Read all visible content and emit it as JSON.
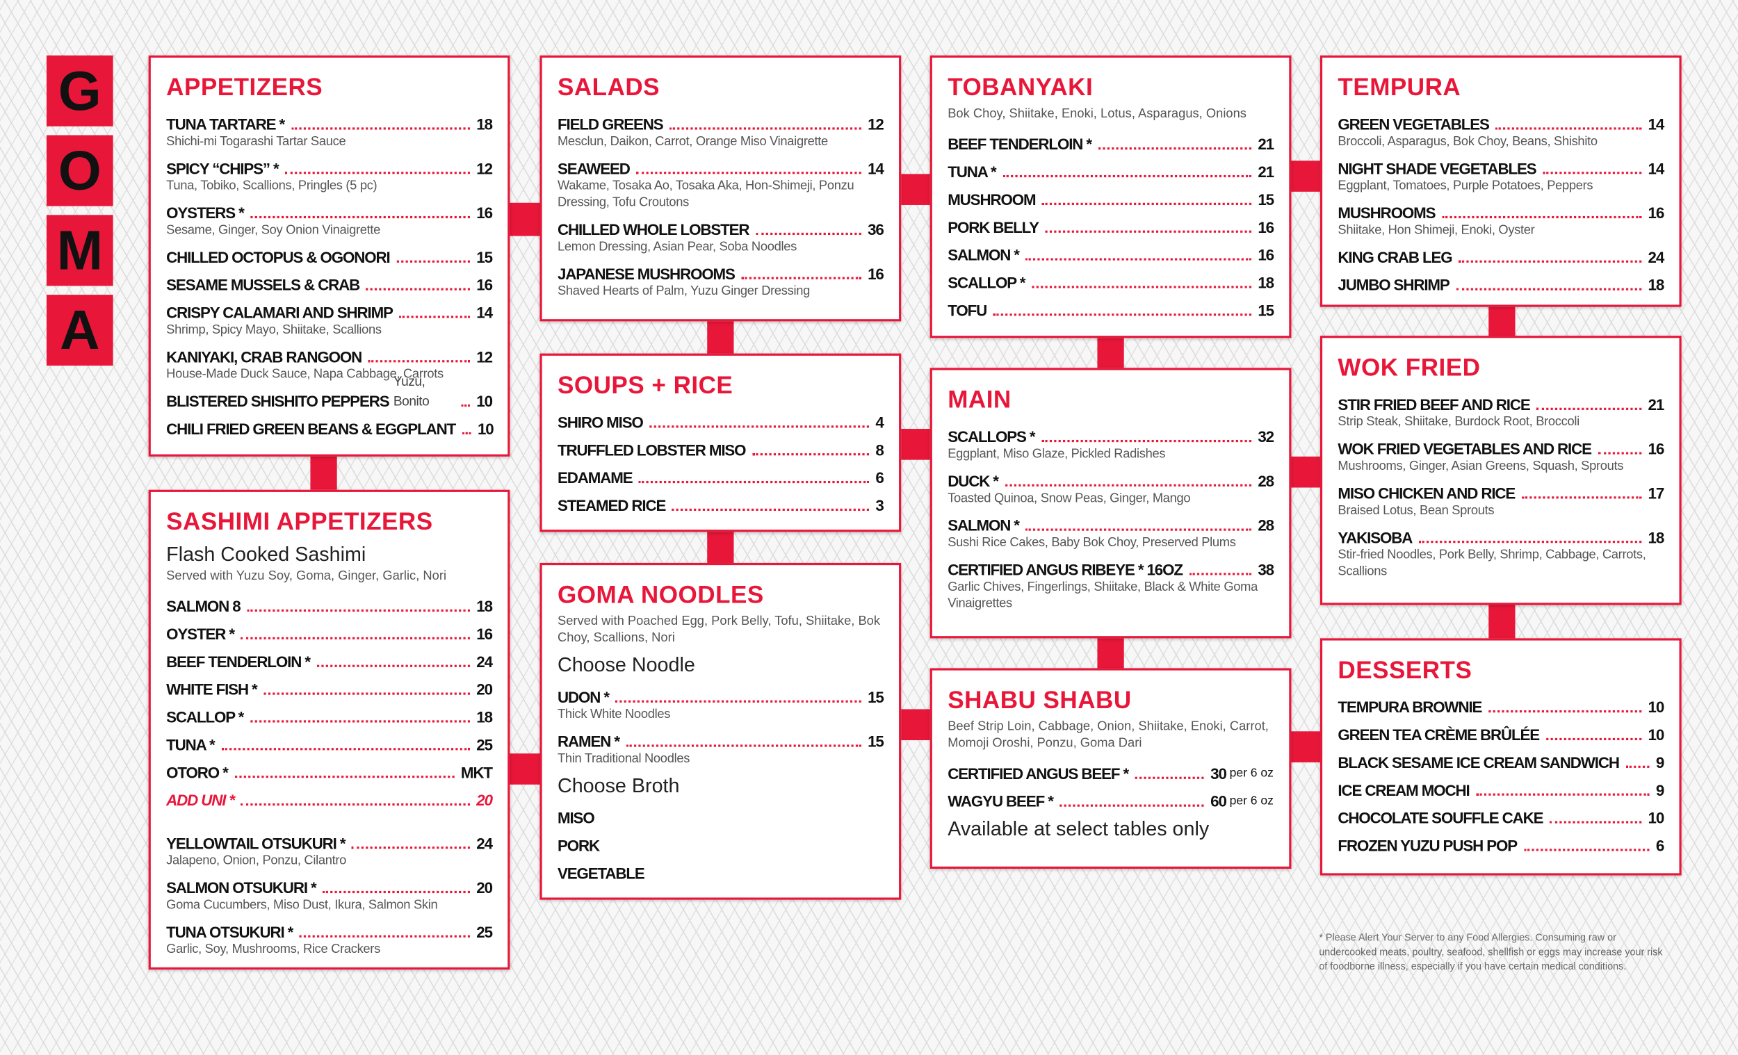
{
  "brand": {
    "letters": [
      "G",
      "O",
      "M",
      "A"
    ]
  },
  "sections": [
    {
      "title": "APPETIZERS",
      "rows": [
        {
          "name": "TUNA TARTARE *",
          "price": 18,
          "desc": "Shichi-mi Togarashi Tartar Sauce"
        },
        {
          "name": "SPICY “CHIPS” *",
          "price": 12,
          "desc": "Tuna, Tobiko, Scallions, Pringles  (5 pc)"
        },
        {
          "name": "OYSTERS *",
          "price": 16,
          "desc": "Sesame, Ginger, Soy Onion Vinaigrette"
        },
        {
          "name": "CHILLED OCTOPUS & OGONORI",
          "price": 15
        },
        {
          "name": "SESAME MUSSELS & CRAB",
          "price": 16
        },
        {
          "name": "CRISPY CALAMARI AND SHRIMP",
          "price": 14,
          "desc": "Shrimp, Spicy Mayo, Shiitake, Scallions"
        },
        {
          "name": "KANIYAKI, CRAB RANGOON",
          "price": 12,
          "desc": "House-Made Duck Sauce, Napa Cabbage, Carrots"
        },
        {
          "name": "BLISTERED SHISHITO PEPPERS",
          "inline_desc": "Yuzu, Bonito",
          "price": 10
        },
        {
          "name": "CHILI FRIED GREEN BEANS & EGGPLANT",
          "price": 10
        }
      ]
    },
    {
      "title": "SASHIMI APPETIZERS",
      "rows": [
        {
          "heading": "Flash Cooked Sashimi"
        },
        {
          "note": "Served with Yuzu Soy, Goma, Ginger, Garlic, Nori"
        },
        {
          "name": "SALMON 8",
          "price": 18
        },
        {
          "name": "OYSTER *",
          "price": 16
        },
        {
          "name": "BEEF TENDERLOIN *",
          "price": 24
        },
        {
          "name": "WHITE FISH *",
          "price": 20
        },
        {
          "name": "SCALLOP *",
          "price": 18
        },
        {
          "name": "TUNA *",
          "price": 25
        },
        {
          "name": "OTORO *",
          "price": "MKT"
        },
        {
          "name": "ADD UNI *",
          "price": 20,
          "color": "#e8173a"
        },
        {
          "name": "YELLOWTAIL OTSUKURI *",
          "price": 24,
          "desc": "Jalapeno, Onion, Ponzu, Cilantro"
        },
        {
          "name": "SALMON OTSUKURI *",
          "price": 20,
          "desc": "Goma Cucumbers, Miso Dust, Ikura, Salmon Skin"
        },
        {
          "name": "TUNA OTSUKURI *",
          "price": 25,
          "desc": "Garlic, Soy, Mushrooms, Rice Crackers"
        }
      ]
    },
    {
      "title": "SALADS",
      "rows": [
        {
          "name": "FIELD GREENS",
          "price": 12,
          "desc": "Mesclun, Daikon, Carrot, Orange Miso Vinaigrette"
        },
        {
          "name": "SEAWEED",
          "price": 14,
          "desc": "Wakame, Tosaka Ao, Tosaka Aka, Hon-Shimeji, Ponzu Dressing, Tofu Croutons"
        },
        {
          "name": "CHILLED WHOLE LOBSTER",
          "price": 36,
          "desc": "Lemon Dressing,  Asian Pear, Soba Noodles"
        },
        {
          "name": "JAPANESE MUSHROOMS",
          "price": 16,
          "desc": "Shaved Hearts of Palm,  Yuzu Ginger Dressing"
        }
      ]
    },
    {
      "title": "SOUPS + RICE",
      "rows": [
        {
          "name": "SHIRO MISO",
          "price": 4
        },
        {
          "name": "TRUFFLED LOBSTER MISO",
          "price": 8
        },
        {
          "name": "EDAMAME",
          "price": 6
        },
        {
          "name": "STEAMED RICE",
          "price": 3
        }
      ]
    },
    {
      "title": "GOMA NOODLES",
      "rows": [
        {
          "note": "Served with Poached Egg, Pork Belly, Tofu, Shiitake, Bok Choy, Scallions, Nori"
        },
        {
          "heading": "Choose Noodle"
        },
        {
          "name": "UDON *",
          "price": 15,
          "desc": "Thick White Noodles"
        },
        {
          "name": "RAMEN *",
          "price": 15,
          "desc": "Thin Traditional Noodles"
        },
        {
          "heading": "Choose Broth"
        },
        {
          "name": "MISO"
        },
        {
          "name": "PORK"
        },
        {
          "name": "VEGETABLE"
        }
      ]
    },
    {
      "title": "TOBANYAKI",
      "rows": [
        {
          "note": "Bok Choy, Shiitake, Enoki, Lotus, Asparagus, Onions"
        },
        {
          "name": "BEEF TENDERLOIN *",
          "price": 21
        },
        {
          "name": "TUNA *",
          "price": 21
        },
        {
          "name": "MUSHROOM",
          "price": 15
        },
        {
          "name": "PORK BELLY",
          "price": 16
        },
        {
          "name": "SALMON *",
          "price": 16
        },
        {
          "name": "SCALLOP *",
          "price": 18
        },
        {
          "name": "TOFU",
          "price": 15
        }
      ]
    },
    {
      "title": "MAIN",
      "rows": [
        {
          "name": "SCALLOPS *",
          "price": 32,
          "desc": "Eggplant, Miso Glaze, Pickled Radishes"
        },
        {
          "name": "DUCK *",
          "price": 28,
          "desc": "Toasted Quinoa, Snow Peas, Ginger, Mango"
        },
        {
          "name": "SALMON *",
          "price": 28,
          "desc": "Sushi Rice Cakes, Baby Bok Choy, Preserved Plums"
        },
        {
          "name": "CERTIFIED ANGUS RIBEYE *  16OZ",
          "price": 38,
          "desc": "Garlic Chives, Fingerlings, Shiitake, Black & White Goma Vinaigrettes"
        }
      ]
    },
    {
      "title": "SHABU SHABU",
      "rows": [
        {
          "note": "Beef Strip Loin, Cabbage, Onion, Shiitake, Enoki, Carrot, Momoji Oroshi, Ponzu, Goma Dari"
        },
        {
          "name": "CERTIFIED ANGUS BEEF *",
          "price": 30,
          "unit": "per 6 oz"
        },
        {
          "name": "WAGYU BEEF *",
          "price": 60,
          "unit": "per 6 oz"
        },
        {
          "heading": "Available at select tables only"
        }
      ]
    },
    {
      "title": "TEMPURA",
      "rows": [
        {
          "name": "GREEN VEGETABLES",
          "price": 14,
          "desc": "Broccoli, Asparagus, Bok Choy, Beans, Shishito"
        },
        {
          "name": "NIGHT SHADE VEGETABLES",
          "price": 14,
          "desc": "Eggplant, Tomatoes, Purple Potatoes, Peppers"
        },
        {
          "name": "MUSHROOMS",
          "price": 16,
          "desc": "Shiitake, Hon Shimeji, Enoki, Oyster"
        },
        {
          "name": "KING CRAB LEG",
          "price": 24
        },
        {
          "name": "JUMBO SHRIMP",
          "price": 18
        }
      ]
    },
    {
      "title": "WOK FRIED",
      "rows": [
        {
          "name": "STIR FRIED BEEF AND RICE",
          "price": 21,
          "desc": "Strip Steak, Shiitake, Burdock Root, Broccoli"
        },
        {
          "name": "WOK FRIED VEGETABLES AND RICE",
          "price": 16,
          "desc": "Mushrooms, Ginger, Asian Greens, Squash, Sprouts"
        },
        {
          "name": "MISO CHICKEN AND RICE",
          "price": 17,
          "desc": "Braised Lotus, Bean Sprouts"
        },
        {
          "name": "YAKISOBA",
          "price": 18,
          "desc": "Stir-fried Noodles, Pork Belly, Shrimp, Cabbage, Carrots, Scallions"
        }
      ]
    },
    {
      "title": "DESSERTS",
      "rows": [
        {
          "name": "TEMPURA BROWNIE",
          "price": 10
        },
        {
          "name": "GREEN TEA CRÈME BRÛLÉE",
          "price": 10
        },
        {
          "name": "BLACK SESAME ICE CREAM SANDWICH",
          "price": 9
        },
        {
          "name": "ICE CREAM MOCHI",
          "price": 9
        },
        {
          "name": "CHOCOLATE SOUFFLE CAKE",
          "price": 10
        },
        {
          "name": "FROZEN YUZU PUSH POP",
          "price": 6
        }
      ]
    }
  ],
  "footnote": "* Please Alert Your Server to any Food Allergies. Consuming raw or undercooked meats, poultry, seafood, shellfish or eggs may increase your risk of foodborne illness, especially if you have certain medical conditions."
}
